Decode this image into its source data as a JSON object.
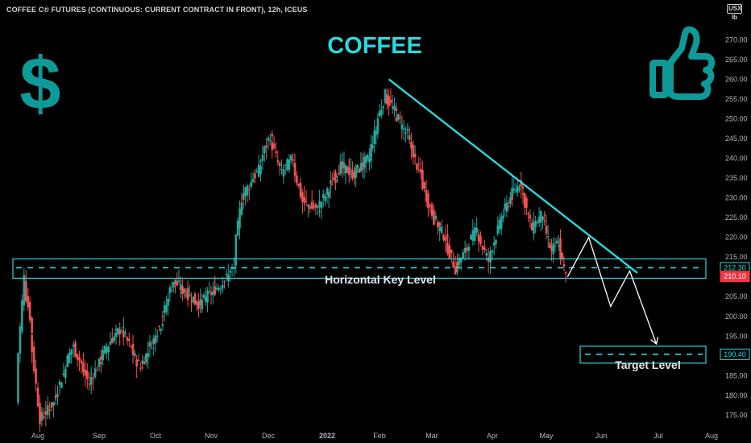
{
  "header": {
    "symbol_title": "COFFEE C® FUTURES (CONTINUOUS: CURRENT CONTRACT IN FRONT), 12h, ICEUS",
    "currency": "USX",
    "unit": "lb"
  },
  "colors": {
    "background": "#000000",
    "up_candle": "#26a69a",
    "down_candle": "#ef5350",
    "annotation": "#2bd9dd",
    "icon_teal": "#0f9a9a",
    "axis_text": "#b2b5be",
    "price_tag_red": "#f23645"
  },
  "icons": {
    "dollar": "dollar-sign-icon",
    "thumbs_up": "thumbs-up-icon"
  },
  "chart_data": {
    "type": "candlestick",
    "title": "COFFEE",
    "x_ticks": [
      "Aug",
      "Sep",
      "Oct",
      "Nov",
      "Dec",
      "2022",
      "Feb",
      "Mar",
      "Apr",
      "May",
      "Jun",
      "Jul",
      "Aug"
    ],
    "y_ticks": [
      "175.00",
      "180.00",
      "185.00",
      "190.00",
      "195.00",
      "200.00",
      "205.00",
      "210.00",
      "215.00",
      "220.00",
      "225.00",
      "230.00",
      "235.00",
      "240.00",
      "245.00",
      "250.00",
      "255.00",
      "260.00",
      "265.00",
      "270.00"
    ],
    "ylim": [
      171,
      276
    ],
    "price_path_keypoints": [
      {
        "date": "2021-07-22",
        "price": 178
      },
      {
        "date": "2021-07-26",
        "price": 210
      },
      {
        "date": "2021-07-29",
        "price": 200
      },
      {
        "date": "2021-08-03",
        "price": 174
      },
      {
        "date": "2021-08-10",
        "price": 178
      },
      {
        "date": "2021-08-20",
        "price": 193
      },
      {
        "date": "2021-08-28",
        "price": 183
      },
      {
        "date": "2021-09-07",
        "price": 193
      },
      {
        "date": "2021-09-14",
        "price": 197
      },
      {
        "date": "2021-09-24",
        "price": 187
      },
      {
        "date": "2021-10-05",
        "price": 198
      },
      {
        "date": "2021-10-12",
        "price": 209
      },
      {
        "date": "2021-10-19",
        "price": 206
      },
      {
        "date": "2021-10-27",
        "price": 203
      },
      {
        "date": "2021-11-07",
        "price": 208
      },
      {
        "date": "2021-11-14",
        "price": 212
      },
      {
        "date": "2021-11-18",
        "price": 230
      },
      {
        "date": "2021-11-27",
        "price": 237
      },
      {
        "date": "2021-12-03",
        "price": 246
      },
      {
        "date": "2021-12-09",
        "price": 236
      },
      {
        "date": "2021-12-15",
        "price": 240
      },
      {
        "date": "2021-12-20",
        "price": 229
      },
      {
        "date": "2021-12-28",
        "price": 227
      },
      {
        "date": "2022-01-03",
        "price": 232
      },
      {
        "date": "2022-01-10",
        "price": 238
      },
      {
        "date": "2022-01-18",
        "price": 236
      },
      {
        "date": "2022-01-27",
        "price": 240
      },
      {
        "date": "2022-02-05",
        "price": 256
      },
      {
        "date": "2022-02-10",
        "price": 252
      },
      {
        "date": "2022-02-17",
        "price": 246
      },
      {
        "date": "2022-02-24",
        "price": 236
      },
      {
        "date": "2022-03-02",
        "price": 226
      },
      {
        "date": "2022-03-09",
        "price": 220
      },
      {
        "date": "2022-03-14",
        "price": 212
      },
      {
        "date": "2022-03-20",
        "price": 217
      },
      {
        "date": "2022-03-25",
        "price": 222
      },
      {
        "date": "2022-03-31",
        "price": 214
      },
      {
        "date": "2022-04-06",
        "price": 223
      },
      {
        "date": "2022-04-12",
        "price": 230
      },
      {
        "date": "2022-04-18",
        "price": 234
      },
      {
        "date": "2022-04-24",
        "price": 222
      },
      {
        "date": "2022-04-30",
        "price": 226
      },
      {
        "date": "2022-05-05",
        "price": 216
      },
      {
        "date": "2022-05-09",
        "price": 219
      },
      {
        "date": "2022-05-13",
        "price": 210
      }
    ],
    "horizontal_key_level": 212.3,
    "target_level": 190.4,
    "last_price": 210.1,
    "annotations": {
      "key_level_label": "Horizontal Key Level",
      "target_label": "Target Level"
    },
    "trendline": {
      "start": {
        "date": "2022-02-06",
        "price": 260
      },
      "end": {
        "date": "2022-06-20",
        "price": 211
      }
    },
    "projection_path": [
      {
        "date": "2022-05-13",
        "price": 210
      },
      {
        "date": "2022-05-25",
        "price": 220
      },
      {
        "date": "2022-06-06",
        "price": 202.5
      },
      {
        "date": "2022-06-16",
        "price": 211.5
      },
      {
        "date": "2022-06-30",
        "price": 193
      }
    ],
    "price_labels": {
      "key": "212.30",
      "last": "210.10",
      "target": "190.40"
    },
    "grid": false
  }
}
